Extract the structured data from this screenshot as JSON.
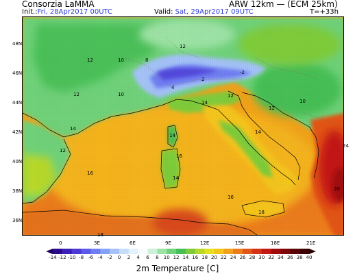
{
  "header": {
    "organization": "Consorzia LaMMA",
    "model": "ARW 12km — (ECM 25km)",
    "init_label": "Init.:",
    "init_value": "Fri, 28Apr2017 00UTC",
    "valid_label": "Valid:",
    "valid_value": "Sat, 29Apr2017 09UTC",
    "forecast_step": "T=+33h"
  },
  "map": {
    "lat_labels": [
      "48N",
      "46N",
      "44N",
      "42N",
      "40N",
      "38N",
      "36N"
    ],
    "lon_labels": [
      "0",
      "3E",
      "6E",
      "9E",
      "12E",
      "15E",
      "18E",
      "21E"
    ],
    "temperature_annotations": [
      {
        "v": "12",
        "region": "France north"
      },
      {
        "v": "10",
        "region": "France north"
      },
      {
        "v": "12",
        "region": "France center"
      },
      {
        "v": "10",
        "region": "France center"
      },
      {
        "v": "8",
        "region": "Switzerland"
      },
      {
        "v": "12",
        "region": "Germany south"
      },
      {
        "v": "-2",
        "region": "Alps"
      },
      {
        "v": "2",
        "region": "Alps"
      },
      {
        "v": "4",
        "region": "Alps"
      },
      {
        "v": "14",
        "region": "Po valley"
      },
      {
        "v": "12",
        "region": "Po valley"
      },
      {
        "v": "16",
        "region": "Tyrrhenian"
      },
      {
        "v": "14",
        "region": "Corsica"
      },
      {
        "v": "14",
        "region": "Sardinia"
      },
      {
        "v": "16",
        "region": "Tyrrhenian south"
      },
      {
        "v": "18",
        "region": "Sicily"
      },
      {
        "v": "14",
        "region": "Spain north"
      },
      {
        "v": "12",
        "region": "Pyrenees"
      },
      {
        "v": "16",
        "region": "Spain east"
      },
      {
        "v": "18",
        "region": "Algeria"
      },
      {
        "v": "20",
        "region": "Greece"
      },
      {
        "v": "24",
        "region": "Greece"
      },
      {
        "v": "10",
        "region": "Balkans"
      },
      {
        "v": "12",
        "region": "Balkans"
      },
      {
        "v": "14",
        "region": "Adriatic"
      }
    ]
  },
  "colorbar": {
    "title": "2m Temperature [C]",
    "ticks": [
      "-14",
      "-12",
      "-10",
      "-8",
      "-6",
      "-4",
      "-2",
      "0",
      "2",
      "4",
      "6",
      "8",
      "10",
      "12",
      "14",
      "16",
      "18",
      "20",
      "22",
      "24",
      "26",
      "28",
      "30",
      "32",
      "34",
      "36",
      "38",
      "40"
    ],
    "colors": [
      "#2a0a8c",
      "#3a1fb8",
      "#4b3ad6",
      "#5c5ae8",
      "#6f7ef2",
      "#86a2f6",
      "#a4c2f8",
      "#c6def9",
      "#e4f2fb",
      "#f8fcff",
      "#cdf0d8",
      "#9ee3a6",
      "#6fd27a",
      "#46bf55",
      "#7fcc3a",
      "#b8d92a",
      "#e6e120",
      "#f5c51b",
      "#f2a21a",
      "#ec7c1b",
      "#e25519",
      "#d43416",
      "#c21712",
      "#a10b0c",
      "#7e0608",
      "#5a0405",
      "#3a0203"
    ]
  }
}
